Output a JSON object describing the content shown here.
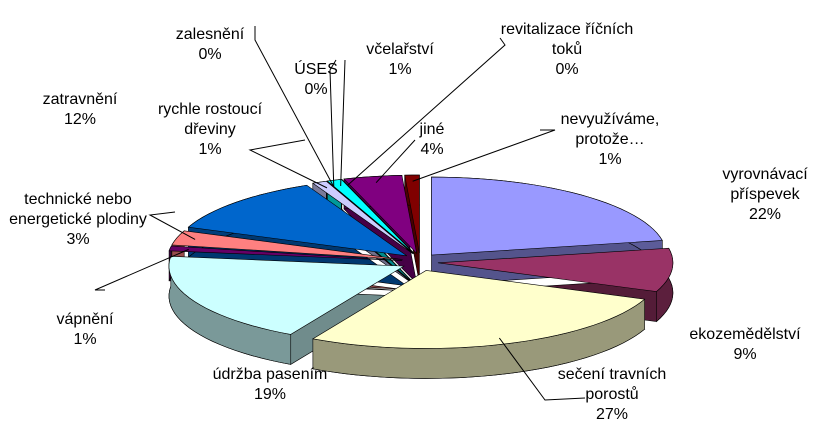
{
  "chart_data": {
    "type": "pie",
    "categories": [
      "vyrovnávací příspevek",
      "ekozemědělství",
      "sečení travních porostů",
      "údržba pasením",
      "vápnění",
      "technické nebo energetické plodiny",
      "zatravnění",
      "rychle rostoucí dřeviny",
      "zalesnění",
      "ÚSES",
      "včelařství",
      "revitalizace říčních toků",
      "jiné",
      "nevyužíváme, protože…"
    ],
    "values": [
      22,
      9,
      27,
      19,
      1,
      3,
      12,
      1,
      0,
      0,
      1,
      0,
      4,
      1
    ],
    "value_labels": [
      "22%",
      "9%",
      "27%",
      "19%",
      "1%",
      "3%",
      "12%",
      "1%",
      "0%",
      "0%",
      "1%",
      "0%",
      "4%",
      "1%"
    ],
    "colors": [
      "#9999ff",
      "#993366",
      "#ffffcc",
      "#ccffff",
      "#660066",
      "#ff8080",
      "#0066cc",
      "#ccccff",
      "#000080",
      "#ff00ff",
      "#00ffff",
      "#800080",
      "#800080",
      "#800000"
    ]
  }
}
